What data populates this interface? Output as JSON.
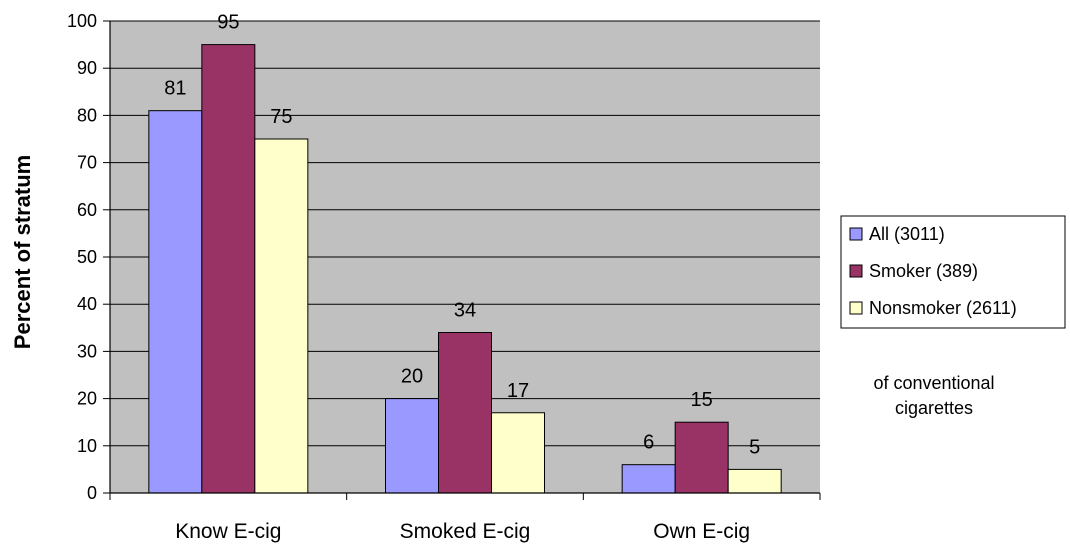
{
  "chart_data": {
    "type": "bar",
    "title": "",
    "xlabel": "",
    "ylabel": "Percent of stratum",
    "ylim": [
      0,
      100
    ],
    "yticks": [
      0,
      10,
      20,
      30,
      40,
      50,
      60,
      70,
      80,
      90,
      100
    ],
    "grid": true,
    "legend_position": "right",
    "categories": [
      "Know E-cig",
      "Smoked E-cig",
      "Own E-cig"
    ],
    "series": [
      {
        "name": "All (3011)",
        "values": [
          81,
          20,
          6
        ],
        "color": "#9999ff"
      },
      {
        "name": "Smoker (389)",
        "values": [
          95,
          34,
          15
        ],
        "color": "#993366"
      },
      {
        "name": "Nonsmoker (2611)",
        "values": [
          75,
          17,
          5
        ],
        "color": "#ffffcc"
      }
    ],
    "annotation": [
      "of conventional",
      "cigarettes"
    ],
    "colors": {
      "plot_background": "#c0c0c0",
      "gridline": "#000000"
    }
  }
}
